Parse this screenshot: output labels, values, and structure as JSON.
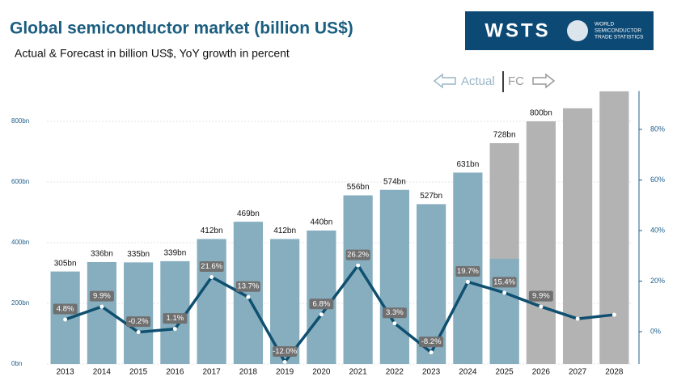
{
  "chart_data": {
    "type": "bar",
    "title": "Global semiconductor market (billion US$)",
    "subtitle": "Actual & Forecast in billion US$, YoY growth in percent",
    "logo": {
      "text": "WSTS",
      "caption": [
        "WORLD",
        "SEMICONDUCTOR",
        "TRADE STATISTICS"
      ]
    },
    "categories": [
      "2013",
      "2014",
      "2015",
      "2016",
      "2017",
      "2018",
      "2019",
      "2020",
      "2021",
      "2022",
      "2023",
      "2024",
      "2025",
      "2026",
      "2027",
      "2028"
    ],
    "series": [
      {
        "name": "Actual",
        "color": "#86aebf",
        "values": [
          305,
          336,
          335,
          339,
          412,
          469,
          412,
          440,
          556,
          574,
          527,
          631,
          347,
          null,
          null,
          null
        ],
        "value_labels": [
          "305bn",
          "336bn",
          "335bn",
          "339bn",
          "412bn",
          "469bn",
          "412bn",
          "440bn",
          "556bn",
          "574bn",
          "527bn",
          "631bn",
          null,
          null,
          null,
          null
        ]
      },
      {
        "name": "FC",
        "color": "#b3b3b3",
        "values": [
          null,
          null,
          null,
          null,
          null,
          null,
          null,
          null,
          null,
          null,
          null,
          null,
          728,
          800,
          843,
          899
        ],
        "value_labels": [
          null,
          null,
          null,
          null,
          null,
          null,
          null,
          null,
          null,
          null,
          null,
          null,
          "728bn",
          "800bn",
          null,
          null
        ]
      },
      {
        "type": "line",
        "axis": "y2",
        "color": "#0f4f6f",
        "values": [
          4.8,
          9.9,
          -0.2,
          1.1,
          21.6,
          13.7,
          -12.0,
          6.8,
          26.2,
          3.3,
          -8.2,
          19.7,
          15.4,
          9.9,
          5.1,
          6.7
        ],
        "value_labels": [
          "4.8%",
          "9.9%",
          "-0.2%",
          "1.1%",
          "21.6%",
          "13.7%",
          "-12.0%",
          "6.8%",
          "26.2%",
          "3.3%",
          "-8.2%",
          "19.7%",
          "15.4%",
          "9.9%",
          null,
          null
        ]
      }
    ],
    "ylim": [
      0,
      900
    ],
    "yticks": [
      {
        "value": 0,
        "label": "0bn"
      },
      {
        "value": 200,
        "label": "200bn"
      },
      {
        "value": 400,
        "label": "400bn"
      },
      {
        "value": 600,
        "label": "600bn"
      },
      {
        "value": 800,
        "label": "800bn"
      }
    ],
    "y2lim": [
      -12.8,
      95.2
    ],
    "y2ticks": [
      {
        "value": 0,
        "label": "0%"
      },
      {
        "value": 20,
        "label": "20%"
      },
      {
        "value": 40,
        "label": "40%"
      },
      {
        "value": 60,
        "label": "60%"
      },
      {
        "value": 80,
        "label": "80%"
      }
    ],
    "grid": true
  }
}
